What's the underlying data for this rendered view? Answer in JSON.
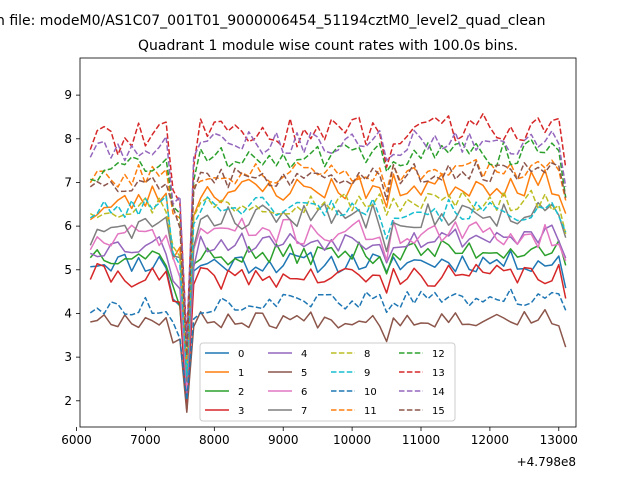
{
  "suptitle": "n file: modeM0/AS1C07_001T01_9000006454_51194cztM0_level2_quad_clean",
  "chart_data": {
    "type": "line",
    "title": "Quadrant 1 module wise count rates with 100.0s bins.",
    "xlabel": "",
    "ylabel": "",
    "x_offset_label": "+4.798e8",
    "xlim": [
      6050,
      13250
    ],
    "ylim": [
      1.4,
      9.85
    ],
    "xticks": [
      6000,
      7000,
      8000,
      9000,
      10000,
      11000,
      12000,
      13000
    ],
    "xtick_labels": [
      "6000",
      "7000",
      "8000",
      "9000",
      "10000",
      "11000",
      "12000",
      "13000"
    ],
    "yticks": [
      2,
      3,
      4,
      5,
      6,
      7,
      8,
      9
    ],
    "ytick_labels": [
      "2",
      "3",
      "4",
      "5",
      "6",
      "7",
      "8",
      "9"
    ],
    "x_start": 6200,
    "x_step": 100,
    "legend_placement": "lower-center",
    "legend_columns": 4,
    "series": [
      {
        "name": "0",
        "color": "#1f77b4",
        "dash": "solid",
        "start": 5.2,
        "mid": 5.15,
        "end": 5.2,
        "dipStart": 4.4,
        "dipBottom": 2.0,
        "dipEnd": 4.9,
        "amp": 0.25,
        "seed": 11
      },
      {
        "name": "1",
        "color": "#ff7f0e",
        "dash": "solid",
        "start": 6.3,
        "mid": 6.8,
        "end": 7.0,
        "dipStart": 5.5,
        "dipBottom": 2.6,
        "dipEnd": 6.4,
        "amp": 0.3,
        "seed": 23
      },
      {
        "name": "2",
        "color": "#2ca02c",
        "dash": "solid",
        "start": 5.4,
        "mid": 5.3,
        "end": 5.5,
        "dipStart": 4.5,
        "dipBottom": 2.1,
        "dipEnd": 5.0,
        "amp": 0.25,
        "seed": 37
      },
      {
        "name": "3",
        "color": "#d62728",
        "dash": "solid",
        "start": 4.9,
        "mid": 4.8,
        "end": 4.9,
        "dipStart": 4.2,
        "dipBottom": 1.8,
        "dipEnd": 4.6,
        "amp": 0.25,
        "seed": 41
      },
      {
        "name": "4",
        "color": "#9467bd",
        "dash": "solid",
        "start": 5.5,
        "mid": 5.6,
        "end": 5.8,
        "dipStart": 4.8,
        "dipBottom": 2.2,
        "dipEnd": 5.2,
        "amp": 0.25,
        "seed": 53
      },
      {
        "name": "5",
        "color": "#8c564b",
        "dash": "solid",
        "start": 3.9,
        "mid": 3.85,
        "end": 3.9,
        "dipStart": 3.5,
        "dipBottom": 1.75,
        "dipEnd": 3.6,
        "amp": 0.2,
        "seed": 67
      },
      {
        "name": "6",
        "color": "#e377c2",
        "dash": "solid",
        "start": 5.6,
        "mid": 5.9,
        "end": 5.8,
        "dipStart": 5.0,
        "dipBottom": 2.3,
        "dipEnd": 5.4,
        "amp": 0.3,
        "seed": 71
      },
      {
        "name": "7",
        "color": "#7f7f7f",
        "dash": "solid",
        "start": 5.7,
        "mid": 6.2,
        "end": 6.3,
        "dipStart": 5.2,
        "dipBottom": 2.4,
        "dipEnd": 5.7,
        "amp": 0.3,
        "seed": 83
      },
      {
        "name": "8",
        "color": "#bcbd22",
        "dash": "dashed",
        "start": 6.4,
        "mid": 6.5,
        "end": 6.6,
        "dipStart": 5.6,
        "dipBottom": 2.7,
        "dipEnd": 6.1,
        "amp": 0.25,
        "seed": 97
      },
      {
        "name": "9",
        "color": "#17becf",
        "dash": "dashed",
        "start": 6.3,
        "mid": 6.5,
        "end": 6.3,
        "dipStart": 5.5,
        "dipBottom": 2.6,
        "dipEnd": 6.0,
        "amp": 0.25,
        "seed": 101
      },
      {
        "name": "10",
        "color": "#1f77b4",
        "dash": "dashed",
        "start": 4.1,
        "mid": 4.2,
        "end": 4.4,
        "dipStart": 3.6,
        "dipBottom": 2.0,
        "dipEnd": 4.0,
        "amp": 0.2,
        "seed": 113
      },
      {
        "name": "11",
        "color": "#ff7f0e",
        "dash": "dashed",
        "start": 7.1,
        "mid": 7.2,
        "end": 7.3,
        "dipStart": 6.2,
        "dipBottom": 3.0,
        "dipEnd": 6.8,
        "amp": 0.25,
        "seed": 127
      },
      {
        "name": "12",
        "color": "#2ca02c",
        "dash": "dashed",
        "start": 7.2,
        "mid": 7.6,
        "end": 7.7,
        "dipStart": 6.4,
        "dipBottom": 3.2,
        "dipEnd": 7.0,
        "amp": 0.3,
        "seed": 131
      },
      {
        "name": "13",
        "color": "#d62728",
        "dash": "dashed",
        "start": 7.9,
        "mid": 8.1,
        "end": 8.3,
        "dipStart": 6.9,
        "dipBottom": 3.4,
        "dipEnd": 7.5,
        "amp": 0.35,
        "seed": 139
      },
      {
        "name": "14",
        "color": "#9467bd",
        "dash": "dashed",
        "start": 7.7,
        "mid": 7.9,
        "end": 7.9,
        "dipStart": 6.7,
        "dipBottom": 3.3,
        "dipEnd": 7.3,
        "amp": 0.3,
        "seed": 149
      },
      {
        "name": "15",
        "color": "#8c564b",
        "dash": "dashed",
        "start": 7.0,
        "mid": 7.1,
        "end": 7.3,
        "dipStart": 6.2,
        "dipBottom": 3.0,
        "dipEnd": 6.7,
        "amp": 0.25,
        "seed": 157
      }
    ]
  }
}
